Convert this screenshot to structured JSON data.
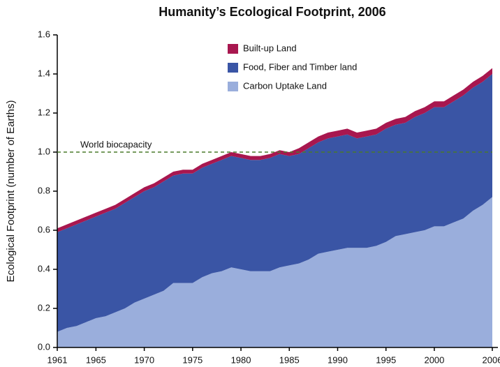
{
  "chart_data": {
    "type": "stacked_area",
    "title": "Humanity’s Ecological Footprint, 2006",
    "y_label": "Ecological Footprint (number of Earths)",
    "reference_line": {
      "value": 1.0,
      "label": "World biocapacity",
      "color": "#4a7a2a"
    },
    "x": [
      1961,
      1962,
      1963,
      1964,
      1965,
      1966,
      1967,
      1968,
      1969,
      1970,
      1971,
      1972,
      1973,
      1974,
      1975,
      1976,
      1977,
      1978,
      1979,
      1980,
      1981,
      1982,
      1983,
      1984,
      1985,
      1986,
      1987,
      1988,
      1989,
      1990,
      1991,
      1992,
      1993,
      1994,
      1995,
      1996,
      1997,
      1998,
      1999,
      2000,
      2001,
      2002,
      2003,
      2004,
      2005,
      2006
    ],
    "series": [
      {
        "name": "Built-up Land",
        "color": "#a8174f",
        "values": [
          0.02,
          0.02,
          0.02,
          0.02,
          0.02,
          0.02,
          0.02,
          0.02,
          0.02,
          0.02,
          0.02,
          0.02,
          0.02,
          0.02,
          0.02,
          0.02,
          0.02,
          0.02,
          0.02,
          0.02,
          0.02,
          0.02,
          0.02,
          0.02,
          0.02,
          0.03,
          0.03,
          0.03,
          0.03,
          0.03,
          0.03,
          0.03,
          0.03,
          0.03,
          0.03,
          0.03,
          0.03,
          0.03,
          0.03,
          0.03,
          0.03,
          0.03,
          0.03,
          0.03,
          0.03,
          0.03
        ]
      },
      {
        "name": "Food, Fiber and Timber land",
        "color": "#3a55a5",
        "values": [
          0.51,
          0.51,
          0.52,
          0.52,
          0.52,
          0.53,
          0.53,
          0.54,
          0.54,
          0.55,
          0.55,
          0.56,
          0.55,
          0.56,
          0.56,
          0.56,
          0.56,
          0.57,
          0.57,
          0.57,
          0.57,
          0.57,
          0.58,
          0.58,
          0.56,
          0.56,
          0.57,
          0.57,
          0.58,
          0.58,
          0.58,
          0.56,
          0.57,
          0.57,
          0.58,
          0.57,
          0.57,
          0.59,
          0.6,
          0.61,
          0.61,
          0.62,
          0.63,
          0.63,
          0.63,
          0.63
        ]
      },
      {
        "name": "Carbon Uptake Land",
        "color": "#9aaedc",
        "values": [
          0.08,
          0.1,
          0.11,
          0.13,
          0.15,
          0.16,
          0.18,
          0.2,
          0.23,
          0.25,
          0.27,
          0.29,
          0.33,
          0.33,
          0.33,
          0.36,
          0.38,
          0.39,
          0.41,
          0.4,
          0.39,
          0.39,
          0.39,
          0.41,
          0.42,
          0.43,
          0.45,
          0.48,
          0.49,
          0.5,
          0.51,
          0.51,
          0.51,
          0.52,
          0.54,
          0.57,
          0.58,
          0.59,
          0.6,
          0.62,
          0.62,
          0.64,
          0.66,
          0.7,
          0.73,
          0.77
        ]
      }
    ],
    "xlim": [
      1961,
      2006
    ],
    "xticks": [
      1961,
      1965,
      1970,
      1975,
      1980,
      1985,
      1990,
      1995,
      2000,
      2006
    ],
    "ylim": [
      0,
      1.6
    ],
    "yticks": [
      {
        "value": 0,
        "label": "0.0"
      },
      {
        "value": 0.2,
        "label": "0.2"
      },
      {
        "value": 0.4,
        "label": "0.4"
      },
      {
        "value": 0.6,
        "label": "0.6"
      },
      {
        "value": 0.8,
        "label": "0.8"
      },
      {
        "value": 1.0,
        "label": "1.0"
      },
      {
        "value": 1.2,
        "label": "1.2"
      },
      {
        "value": 1.4,
        "label": "1.4"
      },
      {
        "value": 1.6,
        "label": "1.6"
      }
    ]
  }
}
